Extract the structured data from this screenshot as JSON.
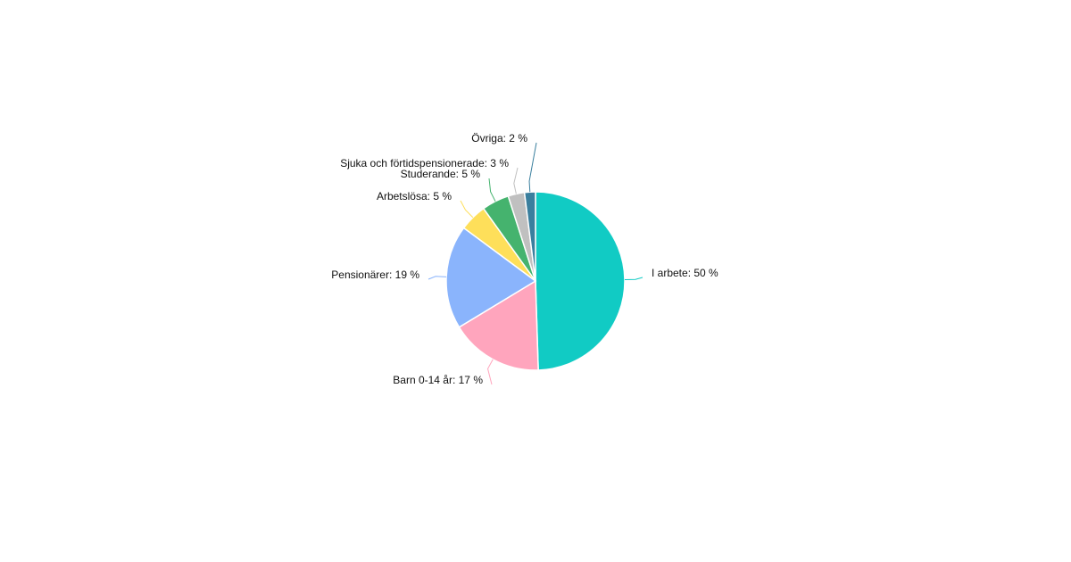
{
  "chart_data": {
    "type": "pie",
    "values": [
      50,
      17,
      19,
      5,
      5,
      3,
      2
    ],
    "value_labels": [
      "I arbete: 50 %",
      "Barn 0-14 år: 17 %",
      "Pensionärer: 19 %",
      "Arbetslösa: 5 %",
      "Studerande: 5 %",
      "Sjuka och förtidspensionerade: 3 %",
      "Övriga: 2 %"
    ],
    "colors": [
      "#11cbc4",
      "#ffa5bd",
      "#8ab4fc",
      "#fedf5a",
      "#45b36e",
      "#c0c0c0",
      "#3a7f9e"
    ]
  }
}
